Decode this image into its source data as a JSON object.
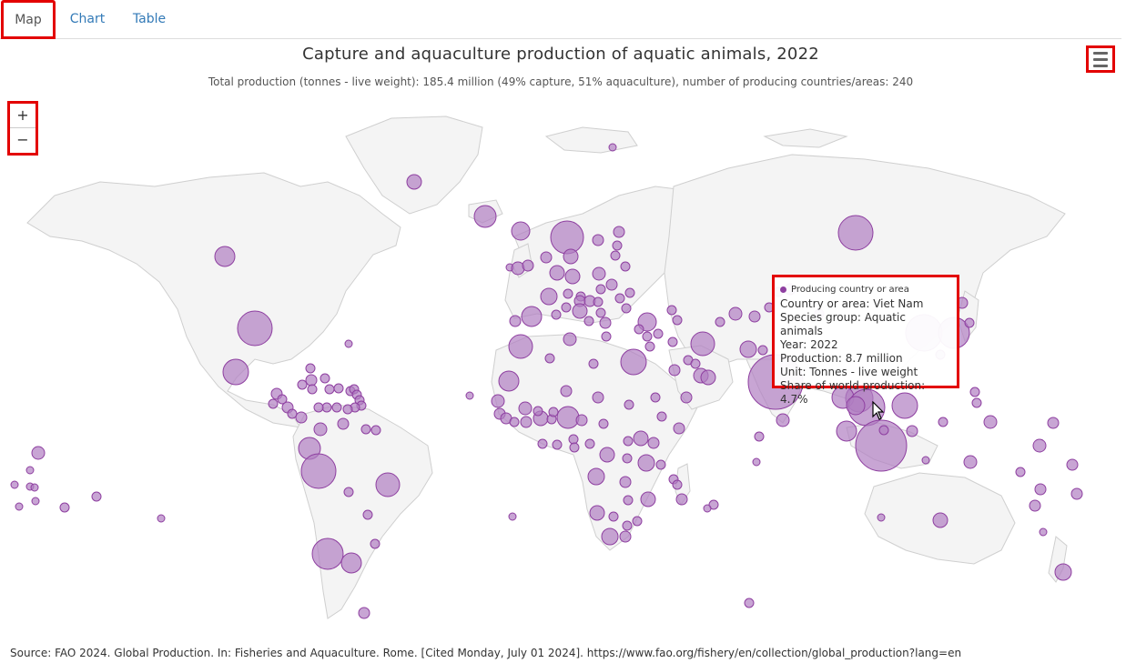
{
  "tabs": {
    "map": "Map",
    "chart": "Chart",
    "table": "Table"
  },
  "title": "Capture and aquaculture production of aquatic animals, 2022",
  "subtitle": "Total production (tonnes - live weight): 185.4 million (49% capture, 51% aquaculture), number of producing countries/areas: 240",
  "zoom": {
    "in": "+",
    "out": "−"
  },
  "icons": {
    "menu": "hamburger-menu-icon",
    "cursor": "mouse-pointer-icon"
  },
  "colors": {
    "bubble_fill": "#b07fc2",
    "bubble_stroke": "#8e3fa0",
    "land": "#f4f4f4",
    "land_border": "#cfcfcf",
    "highlight": "#e30000"
  },
  "tooltip": {
    "series": "Producing country or area",
    "country_label": "Country or area",
    "country": "Viet Nam",
    "species_label": "Species group",
    "species": "Aquatic animals",
    "year_label": "Year",
    "year": "2022",
    "production_label": "Production",
    "production": "8.7 million",
    "unit_label": "Unit",
    "unit": "Tonnes - live weight",
    "share_label": "Share of world production",
    "share": "4.7%"
  },
  "source": "Source: FAO 2024. Global Production. In: Fisheries and Aquaculture. Rome. [Cited Monday, July 01 2024]. https://www.fao.org/fishery/en/collection/global_production?lang=en"
}
